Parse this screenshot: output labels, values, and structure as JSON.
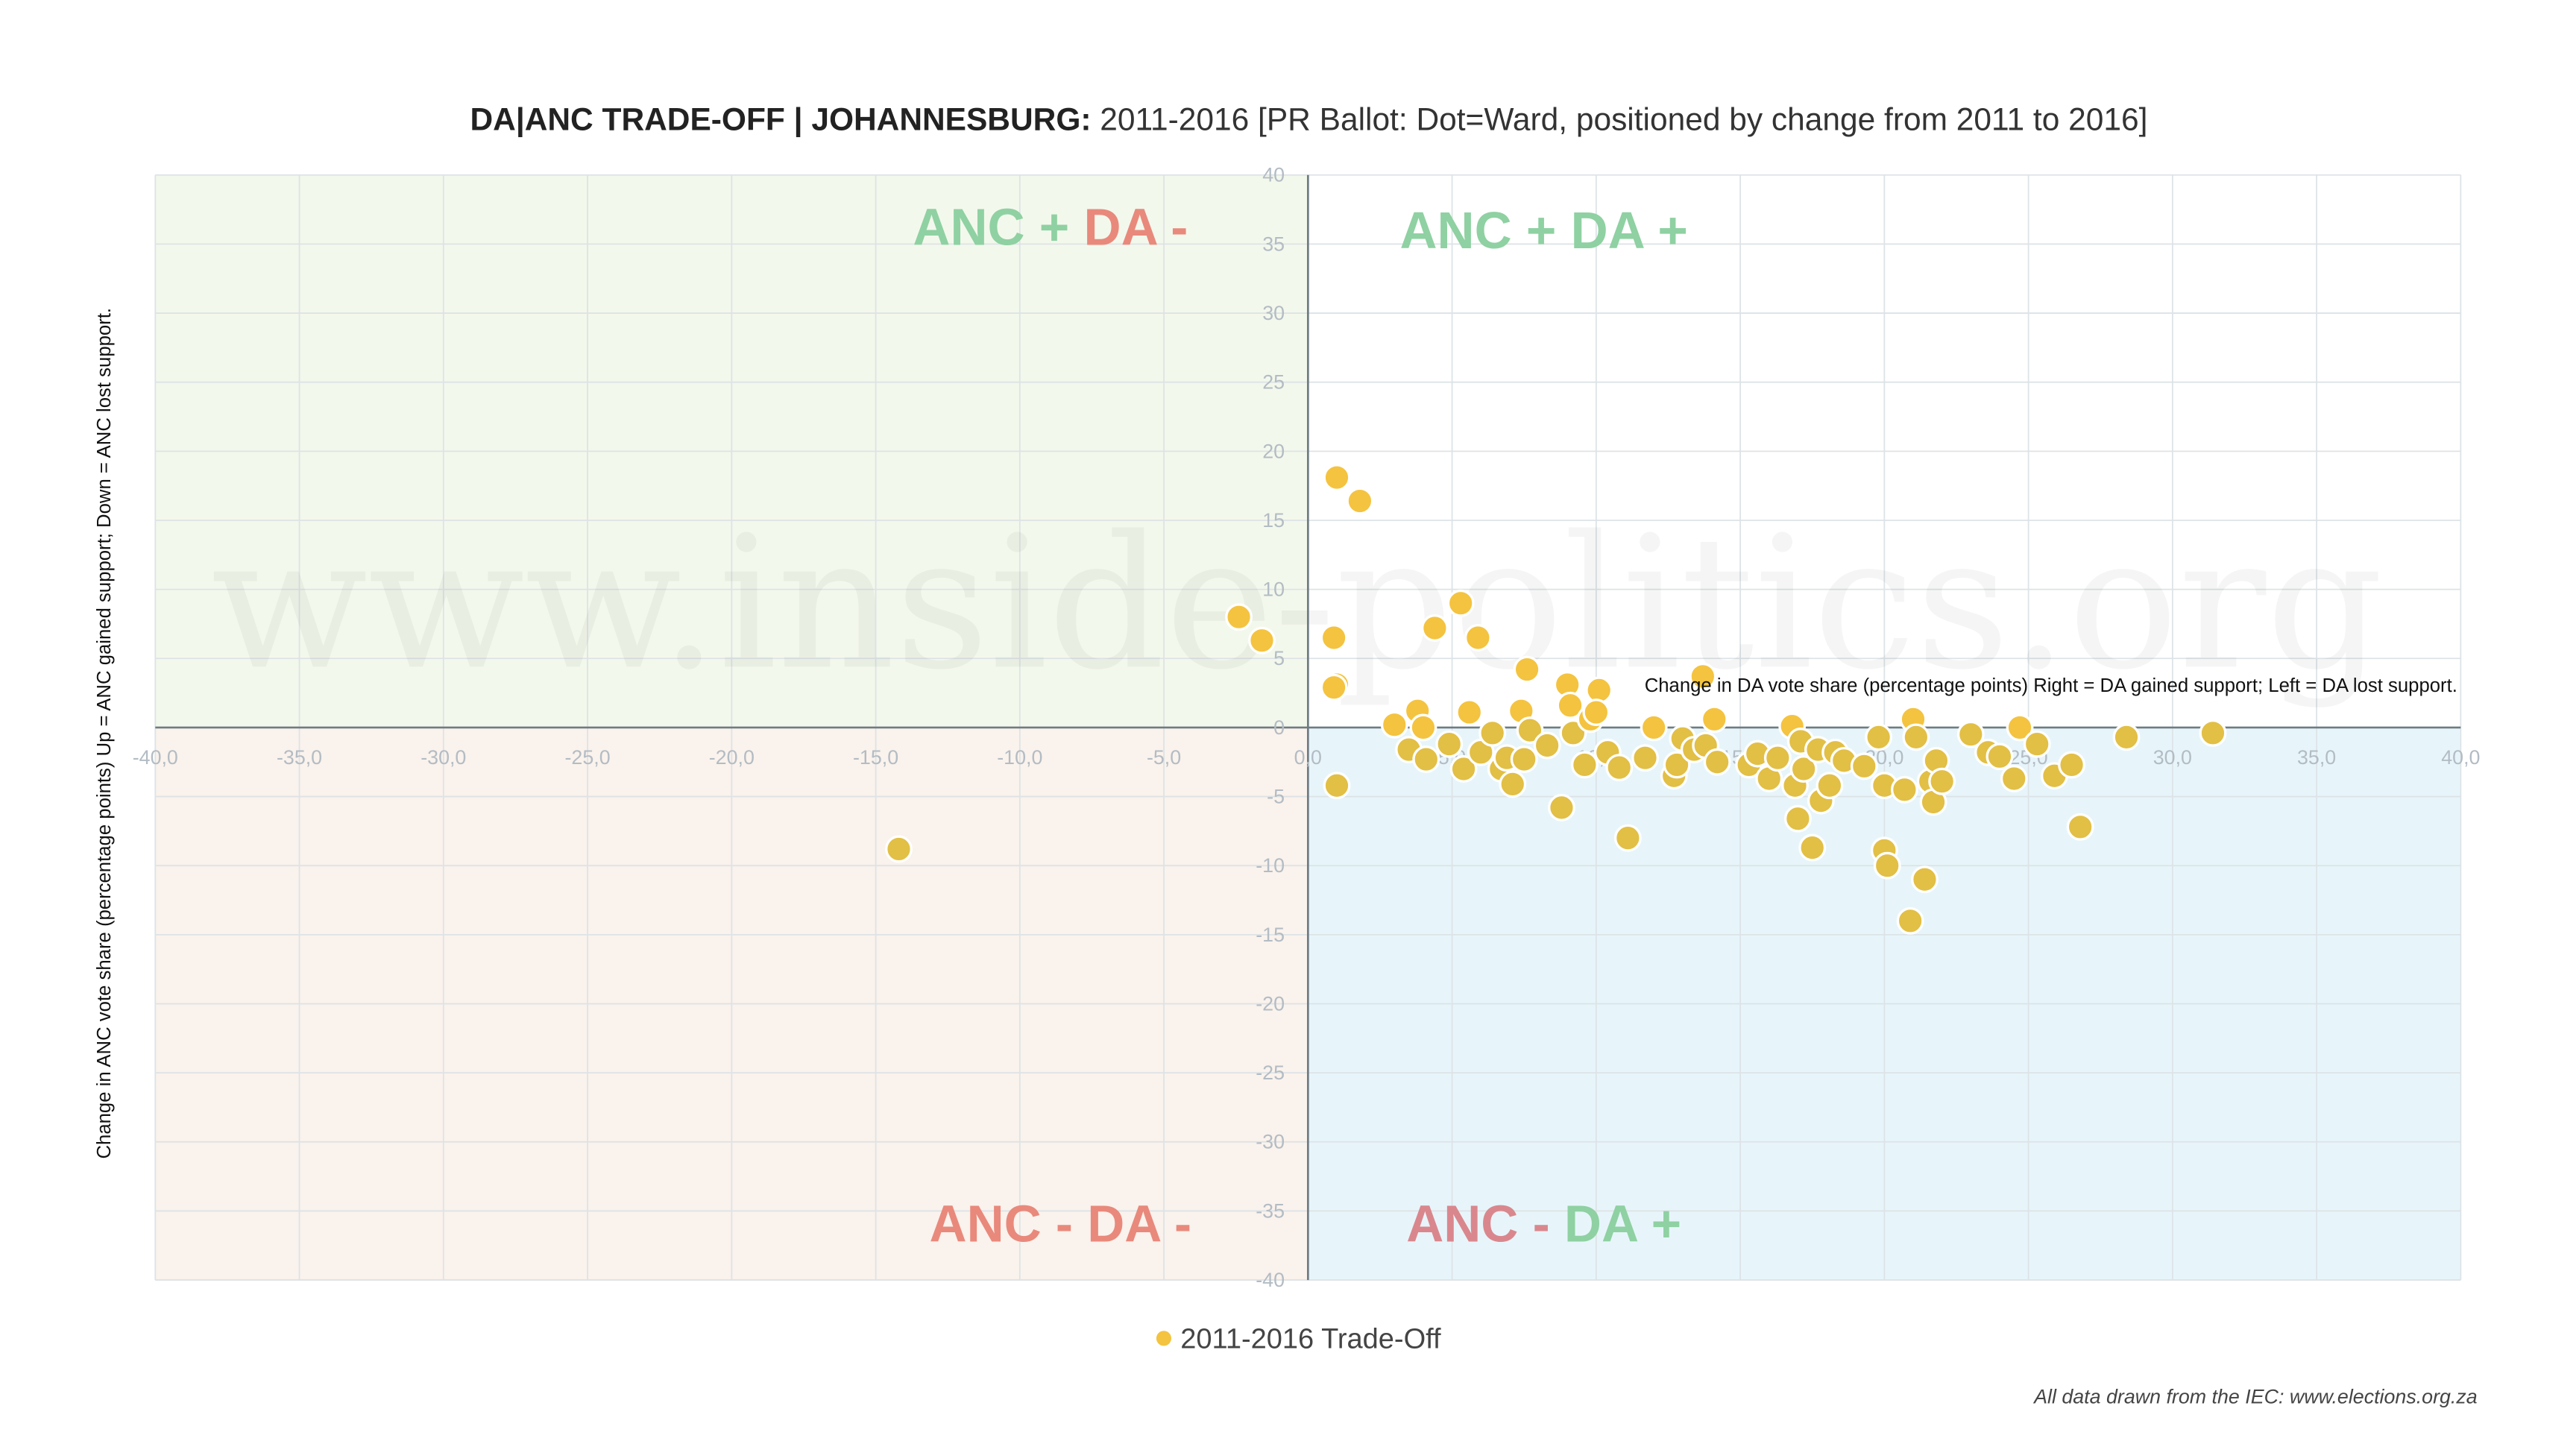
{
  "title": {
    "bold": "DA|ANC TRADE-OFF | JOHANNESBURG:",
    "rest": " 2011-2016 [PR Ballot: Dot=Ward, positioned by change from 2011 to 2016]"
  },
  "watermark": "www.inside-politics.org",
  "footer": "All data drawn from the IEC: www.elections.org.za",
  "quadrants": {
    "top_left": [
      "ANC + ",
      "DA -"
    ],
    "top_right": [
      "ANC + ",
      "DA +"
    ],
    "bottom_left": [
      "ANC - ",
      "DA -"
    ],
    "bottom_right": [
      "ANC - ",
      "DA +"
    ]
  },
  "colors": {
    "dot": "#f4c33f",
    "green": "#8fd1a2",
    "red": "#e8897c",
    "pink": "#d9878d",
    "q_tl": "#f3f8ec",
    "q_bl": "#faf2ec",
    "q_br": "#e7f5fa"
  },
  "chart_data": {
    "type": "scatter",
    "title": "DA|ANC TRADE-OFF | JOHANNESBURG: 2011-2016 [PR Ballot: Dot=Ward, positioned by change from 2011 to 2016]",
    "xlabel": "Change in DA vote share (percentage points) Right = DA gained support; Left = DA lost support.",
    "ylabel": "Change in ANC vote share (percentage points) Up = ANC gained support; Down = ANC lost support.",
    "xlim": [
      -40,
      40
    ],
    "ylim": [
      -40,
      40
    ],
    "xticks": [
      "-40,0",
      "-35,0",
      "-30,0",
      "-25,0",
      "-20,0",
      "-15,0",
      "-10,0",
      "-5,0",
      "0,0",
      "5,0",
      "10,0",
      "15,0",
      "20,0",
      "25,0",
      "30,0",
      "35,0",
      "40,0"
    ],
    "yticks": [
      "40",
      "35",
      "30",
      "25",
      "20",
      "15",
      "10",
      "5",
      "0",
      "-5",
      "-10",
      "-15",
      "-20",
      "-25",
      "-30",
      "-35",
      "-40"
    ],
    "grid": true,
    "legend": {
      "position": "bottom",
      "entries": [
        "2011-2016 Trade-Off"
      ]
    },
    "series": [
      {
        "name": "2011-2016 Trade-Off",
        "points": [
          [
            1.0,
            18.1
          ],
          [
            1.8,
            16.4
          ],
          [
            -2.4,
            8.0
          ],
          [
            -1.6,
            6.3
          ],
          [
            0.9,
            6.5
          ],
          [
            1.0,
            3.1
          ],
          [
            0.9,
            2.9
          ],
          [
            1.0,
            -4.2
          ],
          [
            -14.2,
            -8.8
          ],
          [
            5.3,
            9.0
          ],
          [
            4.4,
            7.2
          ],
          [
            5.9,
            6.5
          ],
          [
            7.6,
            4.2
          ],
          [
            13.7,
            3.7
          ],
          [
            10.1,
            2.7
          ],
          [
            9.0,
            3.1
          ],
          [
            3.0,
            0.2
          ],
          [
            3.8,
            1.2
          ],
          [
            3.5,
            -1.6
          ],
          [
            4.1,
            -2.3
          ],
          [
            4.0,
            0.0
          ],
          [
            4.9,
            -1.2
          ],
          [
            5.4,
            -3.0
          ],
          [
            5.6,
            1.1
          ],
          [
            6.0,
            -1.8
          ],
          [
            6.4,
            -0.4
          ],
          [
            6.7,
            -3.0
          ],
          [
            6.9,
            -2.2
          ],
          [
            7.1,
            -4.1
          ],
          [
            7.4,
            1.2
          ],
          [
            7.5,
            -2.3
          ],
          [
            7.7,
            -0.2
          ],
          [
            8.3,
            -1.3
          ],
          [
            8.8,
            -5.8
          ],
          [
            9.1,
            1.6
          ],
          [
            9.2,
            -0.4
          ],
          [
            9.6,
            -2.7
          ],
          [
            9.8,
            0.6
          ],
          [
            10.0,
            1.1
          ],
          [
            10.4,
            -1.8
          ],
          [
            10.8,
            -2.9
          ],
          [
            11.1,
            -8.0
          ],
          [
            11.7,
            -2.2
          ],
          [
            12.0,
            0.0
          ],
          [
            12.7,
            -3.5
          ],
          [
            12.8,
            -2.7
          ],
          [
            13.0,
            -0.8
          ],
          [
            13.4,
            -1.6
          ],
          [
            13.8,
            -1.3
          ],
          [
            14.1,
            0.6
          ],
          [
            14.2,
            -2.5
          ],
          [
            15.3,
            -2.7
          ],
          [
            15.6,
            -1.9
          ],
          [
            16.0,
            -3.7
          ],
          [
            16.3,
            -2.2
          ],
          [
            16.8,
            0.1
          ],
          [
            16.9,
            -4.2
          ],
          [
            17.0,
            -6.6
          ],
          [
            17.1,
            -1.0
          ],
          [
            17.2,
            -3.0
          ],
          [
            17.5,
            -8.7
          ],
          [
            17.7,
            -1.6
          ],
          [
            17.8,
            -5.3
          ],
          [
            18.1,
            -4.2
          ],
          [
            18.3,
            -1.8
          ],
          [
            18.6,
            -2.4
          ],
          [
            19.3,
            -2.8
          ],
          [
            19.8,
            -0.7
          ],
          [
            20.0,
            -4.2
          ],
          [
            20.0,
            -8.9
          ],
          [
            20.1,
            -10.0
          ],
          [
            20.7,
            -4.5
          ],
          [
            21.0,
            0.6
          ],
          [
            21.1,
            -0.7
          ],
          [
            20.9,
            -14.0
          ],
          [
            21.4,
            -11.0
          ],
          [
            21.6,
            -3.9
          ],
          [
            21.7,
            -5.4
          ],
          [
            21.8,
            -2.4
          ],
          [
            22.0,
            -3.9
          ],
          [
            23.0,
            -0.5
          ],
          [
            23.6,
            -1.8
          ],
          [
            24.0,
            -2.1
          ],
          [
            24.5,
            -3.7
          ],
          [
            24.7,
            0.0
          ],
          [
            25.3,
            -1.2
          ],
          [
            25.9,
            -3.5
          ],
          [
            26.5,
            -2.7
          ],
          [
            26.8,
            -7.2
          ],
          [
            28.4,
            -0.7
          ],
          [
            31.4,
            -0.4
          ]
        ]
      }
    ]
  }
}
